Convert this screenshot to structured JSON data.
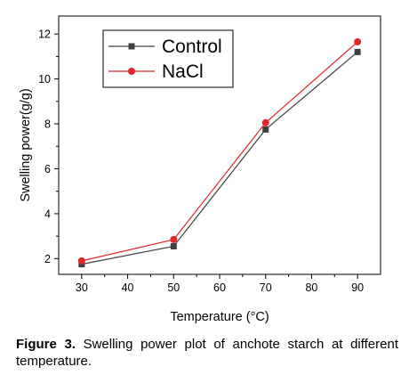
{
  "chart_data": {
    "type": "line",
    "title": "",
    "xlabel": "Temperature",
    "xlabel_unit": "(°C)",
    "ylabel": "Swelling power(g/g)",
    "x": [
      30,
      50,
      70,
      90
    ],
    "xticks": [
      30,
      40,
      50,
      60,
      70,
      80,
      90
    ],
    "yticks": [
      2,
      4,
      6,
      8,
      10,
      12
    ],
    "xlim": [
      25,
      95
    ],
    "ylim": [
      1.3,
      12.8
    ],
    "grid": false,
    "legend_position": "top-left",
    "series": [
      {
        "name": "Control",
        "values": [
          1.75,
          2.55,
          7.75,
          11.2
        ],
        "color": "#404040",
        "marker": "square"
      },
      {
        "name": "NaCl",
        "values": [
          1.9,
          2.85,
          8.05,
          11.65
        ],
        "color": "#e3262a",
        "marker": "circle"
      }
    ]
  },
  "caption": {
    "label": "Figure 3.",
    "text": " Swelling power plot of anchote starch at different temperature."
  }
}
